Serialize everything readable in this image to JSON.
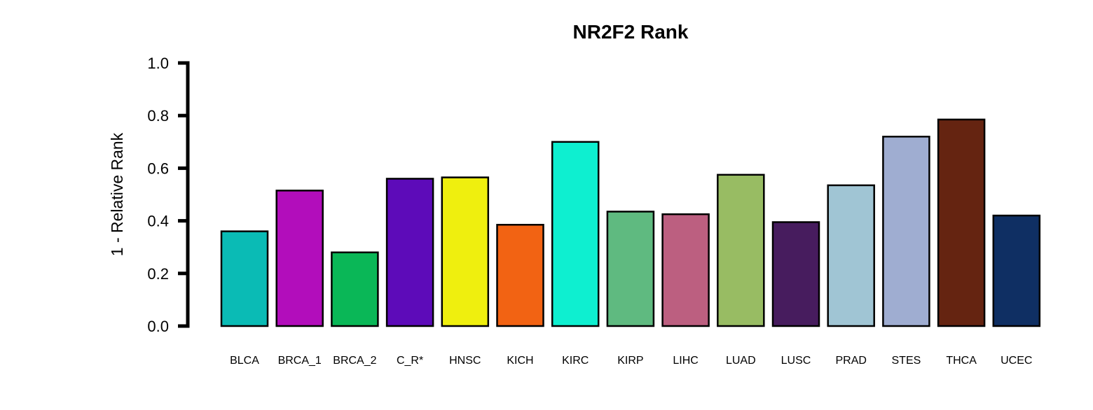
{
  "chart_data": {
    "type": "bar",
    "title": "NR2F2 Rank",
    "xlabel": "",
    "ylabel": "1 - Relative Rank",
    "ylim": [
      0,
      1
    ],
    "yticks": [
      "0.0",
      "0.2",
      "0.4",
      "0.6",
      "0.8",
      "1.0"
    ],
    "ytick_values": [
      0,
      0.2,
      0.4,
      0.6,
      0.8,
      1.0
    ],
    "categories": [
      "BLCA",
      "BRCA_1",
      "BRCA_2",
      "C_R*",
      "HNSC",
      "KICH",
      "KIRC",
      "KIRP",
      "LIHC",
      "LUAD",
      "LUSC",
      "PRAD",
      "STES",
      "THCA",
      "UCEC"
    ],
    "values": [
      0.36,
      0.515,
      0.28,
      0.56,
      0.565,
      0.385,
      0.7,
      0.435,
      0.425,
      0.575,
      0.395,
      0.535,
      0.72,
      0.785,
      0.42
    ],
    "colors": [
      "#0ABBB5",
      "#B20DBB",
      "#0AB757",
      "#5D0BB9",
      "#EFEF0E",
      "#F26313",
      "#0EEFD0",
      "#5FBA80",
      "#BC5F80",
      "#98BC63",
      "#471C5E",
      "#A0C5D4",
      "#9FADD1",
      "#652411",
      "#0F2F63"
    ],
    "grid": false,
    "legend": "none"
  }
}
